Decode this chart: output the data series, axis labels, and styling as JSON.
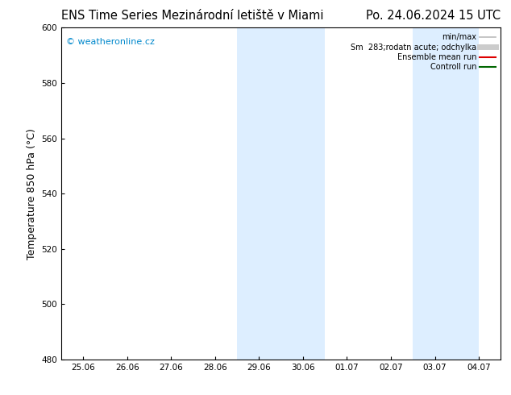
{
  "title_left": "ENS Time Series Mezinárodní letiště v Miami",
  "title_right": "Po. 24.06.2024 15 UTC",
  "ylabel": "Temperature 850 hPa (°C)",
  "watermark": "© weatheronline.cz",
  "watermark_color": "#0088cc",
  "xlim_dates": [
    "25.06",
    "26.06",
    "27.06",
    "28.06",
    "29.06",
    "30.06",
    "01.07",
    "02.07",
    "03.07",
    "04.07"
  ],
  "ylim": [
    480,
    600
  ],
  "yticks": [
    480,
    500,
    520,
    540,
    560,
    580,
    600
  ],
  "shaded_regions": [
    {
      "xstart": 3.5,
      "xend": 5.5
    },
    {
      "xstart": 7.5,
      "xend": 9.0
    }
  ],
  "shaded_color": "#ddeeff",
  "bg_color": "#ffffff",
  "legend_entries": [
    {
      "label": "min/max",
      "color": "#bbbbbb",
      "lw": 1.2
    },
    {
      "label": "Sm  283;rodatn acute; odchylka",
      "color": "#cccccc",
      "lw": 5
    },
    {
      "label": "Ensemble mean run",
      "color": "#dd0000",
      "lw": 1.5
    },
    {
      "label": "Controll run",
      "color": "#006600",
      "lw": 1.5
    }
  ],
  "axis_linewidth": 0.8,
  "tick_fontsize": 7.5,
  "label_fontsize": 9,
  "title_fontsize": 10.5
}
